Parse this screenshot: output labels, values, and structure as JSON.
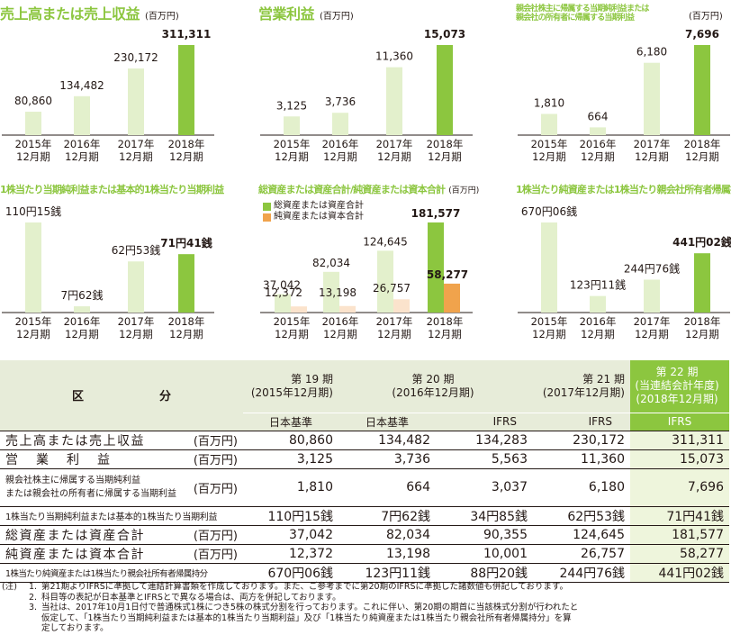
{
  "colors": {
    "current": "#8cc63f",
    "past": "#e3f0cc",
    "secondary_current": "#f0a34c",
    "secondary_past": "#fbe3cc",
    "title": "#8cc63f"
  },
  "chart_data": [
    {
      "id": "revenue",
      "type": "bar",
      "title": "売上高または売上収益",
      "unit": "(百万円)",
      "title_size": "big",
      "categories": [
        [
          "2015年",
          "12月期"
        ],
        [
          "2016年",
          "12月期"
        ],
        [
          "2017年",
          "12月期"
        ],
        [
          "2018年",
          "12月期"
        ]
      ],
      "series": [
        {
          "values": [
            80860,
            134482,
            230172,
            311311
          ],
          "labels": [
            "80,860",
            "134,482",
            "230,172",
            "311,311"
          ]
        }
      ],
      "ylim": [
        0,
        311311
      ]
    },
    {
      "id": "operating-income",
      "type": "bar",
      "title": "営業利益",
      "unit": "(百万円)",
      "title_size": "big",
      "categories": [
        [
          "2015年",
          "12月期"
        ],
        [
          "2016年",
          "12月期"
        ],
        [
          "2017年",
          "12月期"
        ],
        [
          "2018年",
          "12月期"
        ]
      ],
      "series": [
        {
          "values": [
            3125,
            3736,
            11360,
            15073
          ],
          "labels": [
            "3,125",
            "3,736",
            "11,360",
            "15,073"
          ]
        }
      ],
      "ylim": [
        0,
        15073
      ]
    },
    {
      "id": "net-income",
      "type": "bar",
      "title": "親会社株主に帰属する当期純利益または\n親会社の所有者に帰属する当期利益",
      "unit": "(百万円)",
      "title_size": "small",
      "categories": [
        [
          "2015年",
          "12月期"
        ],
        [
          "2016年",
          "12月期"
        ],
        [
          "2017年",
          "12月期"
        ],
        [
          "2018年",
          "12月期"
        ]
      ],
      "series": [
        {
          "values": [
            1810,
            664,
            6180,
            7696
          ],
          "labels": [
            "1,810",
            "664",
            "6,180",
            "7,696"
          ]
        }
      ],
      "ylim": [
        0,
        7696
      ]
    },
    {
      "id": "eps",
      "type": "bar",
      "title": "1株当たり当期純利益または基本的1株当たり当期利益",
      "unit": "",
      "title_size": "mid",
      "categories": [
        [
          "2015年",
          "12月期"
        ],
        [
          "2016年",
          "12月期"
        ],
        [
          "2017年",
          "12月期"
        ],
        [
          "2018年",
          "12月期"
        ]
      ],
      "series": [
        {
          "values": [
            110.15,
            7.62,
            62.53,
            71.41
          ],
          "labels": [
            "110円15銭",
            "7円62銭",
            "62円53銭",
            "71円41銭"
          ]
        }
      ],
      "ylim": [
        0,
        110.15
      ]
    },
    {
      "id": "assets-equity",
      "type": "bar",
      "title": "総資産または資産合計/純資産または資本合計",
      "unit": "(百万円)",
      "title_size": "mid",
      "categories": [
        [
          "2015年",
          "12月期"
        ],
        [
          "2016年",
          "12月期"
        ],
        [
          "2017年",
          "12月期"
        ],
        [
          "2018年",
          "12月期"
        ]
      ],
      "series": [
        {
          "name": "総資産または資産合計",
          "values": [
            37042,
            82034,
            124645,
            181577
          ],
          "labels": [
            "37,042",
            "82,034",
            "124,645",
            "181,577"
          ]
        },
        {
          "name": "純資産または資本合計",
          "values": [
            12372,
            13198,
            26757,
            58277
          ],
          "labels": [
            "12,372",
            "13,198",
            "26,757",
            "58,277"
          ]
        }
      ],
      "ylim": [
        0,
        181577
      ]
    },
    {
      "id": "bps",
      "type": "bar",
      "title": "1株当たり純資産または1株当たり親会社所有者帰属持分",
      "unit": "",
      "title_size": "mid",
      "categories": [
        [
          "2015年",
          "12月期"
        ],
        [
          "2016年",
          "12月期"
        ],
        [
          "2017年",
          "12月期"
        ],
        [
          "2018年",
          "12月期"
        ]
      ],
      "series": [
        {
          "values": [
            670.06,
            123.11,
            244.76,
            441.02
          ],
          "labels": [
            "670円06銭",
            "123円11銭",
            "244円76銭",
            "441円02銭"
          ]
        }
      ],
      "ylim": [
        0,
        670.06
      ]
    }
  ],
  "table": {
    "category_header": [
      "区",
      "分"
    ],
    "periods": [
      {
        "term": "第 19 期",
        "date": "(2015年12月期)",
        "standards": [
          "日本基準"
        ]
      },
      {
        "term": "第 20 期",
        "date": "(2016年12月期)",
        "standards": [
          "日本基準",
          "IFRS"
        ]
      },
      {
        "term": "第 21 期",
        "date": "(2017年12月期)",
        "standards": [
          "IFRS"
        ]
      },
      {
        "term": "第 22 期",
        "date": "(当連結会計年度)",
        "date2": "(2018年12月期)",
        "standards": [
          "IFRS"
        ]
      }
    ],
    "rows": [
      {
        "label": "売上高または売上収益",
        "unit": "(百万円)",
        "values": [
          "80,860",
          "134,482",
          "134,283",
          "230,172",
          "311,311"
        ]
      },
      {
        "label": "営業利益",
        "unit": "(百万円)",
        "values": [
          "3,125",
          "3,736",
          "5,563",
          "11,360",
          "15,073"
        ]
      },
      {
        "label": "親会社株主に帰属する当期純利益",
        "label2": "または親会社の所有者に帰属する当期利益",
        "unit": "(百万円)",
        "values": [
          "1,810",
          "664",
          "3,037",
          "6,180",
          "7,696"
        ]
      },
      {
        "label": "1株当たり当期純利益または基本的1株当たり当期利益",
        "unit": "",
        "values": [
          "110円15銭",
          "7円62銭",
          "34円85銭",
          "62円53銭",
          "71円41銭"
        ]
      },
      {
        "label": "総資産または資産合計",
        "unit": "(百万円)",
        "values": [
          "37,042",
          "82,034",
          "90,355",
          "124,645",
          "181,577"
        ]
      },
      {
        "label": "純資産または資本合計",
        "unit": "(百万円)",
        "values": [
          "12,372",
          "13,198",
          "10,001",
          "26,757",
          "58,277"
        ]
      },
      {
        "label": "1株当たり純資産または1株当たり親会社所有者帰属持分",
        "unit": "",
        "values": [
          "670円06銭",
          "123円11銭",
          "88円20銭",
          "244円76銭",
          "441円02銭"
        ]
      }
    ]
  },
  "notes": {
    "prefix": "(注)",
    "items": [
      {
        "num": "1.",
        "text": "第21期よりIFRSに準拠して連結計算書類を作成しております。また、ご参考までに第20期のIFRSに準拠した諸数値も併記しております。"
      },
      {
        "num": "2.",
        "text": "科目等の表記が日本基準とIFRSとで異なる場合は、両方を併記しております。"
      },
      {
        "num": "3.",
        "text": "当社は、2017年10月1日付で普通株式1株につき5株の株式分割を行っております。これに伴い、第20期の期首に当該株式分割が行われたと"
      },
      {
        "num": "",
        "text": "仮定して、「1株当たり当期純利益または基本的1株当たり当期利益」及び「1株当たり純資産または1株当たり親会社所有者帰属持分」を算"
      },
      {
        "num": "",
        "text": "定しております。"
      }
    ]
  }
}
